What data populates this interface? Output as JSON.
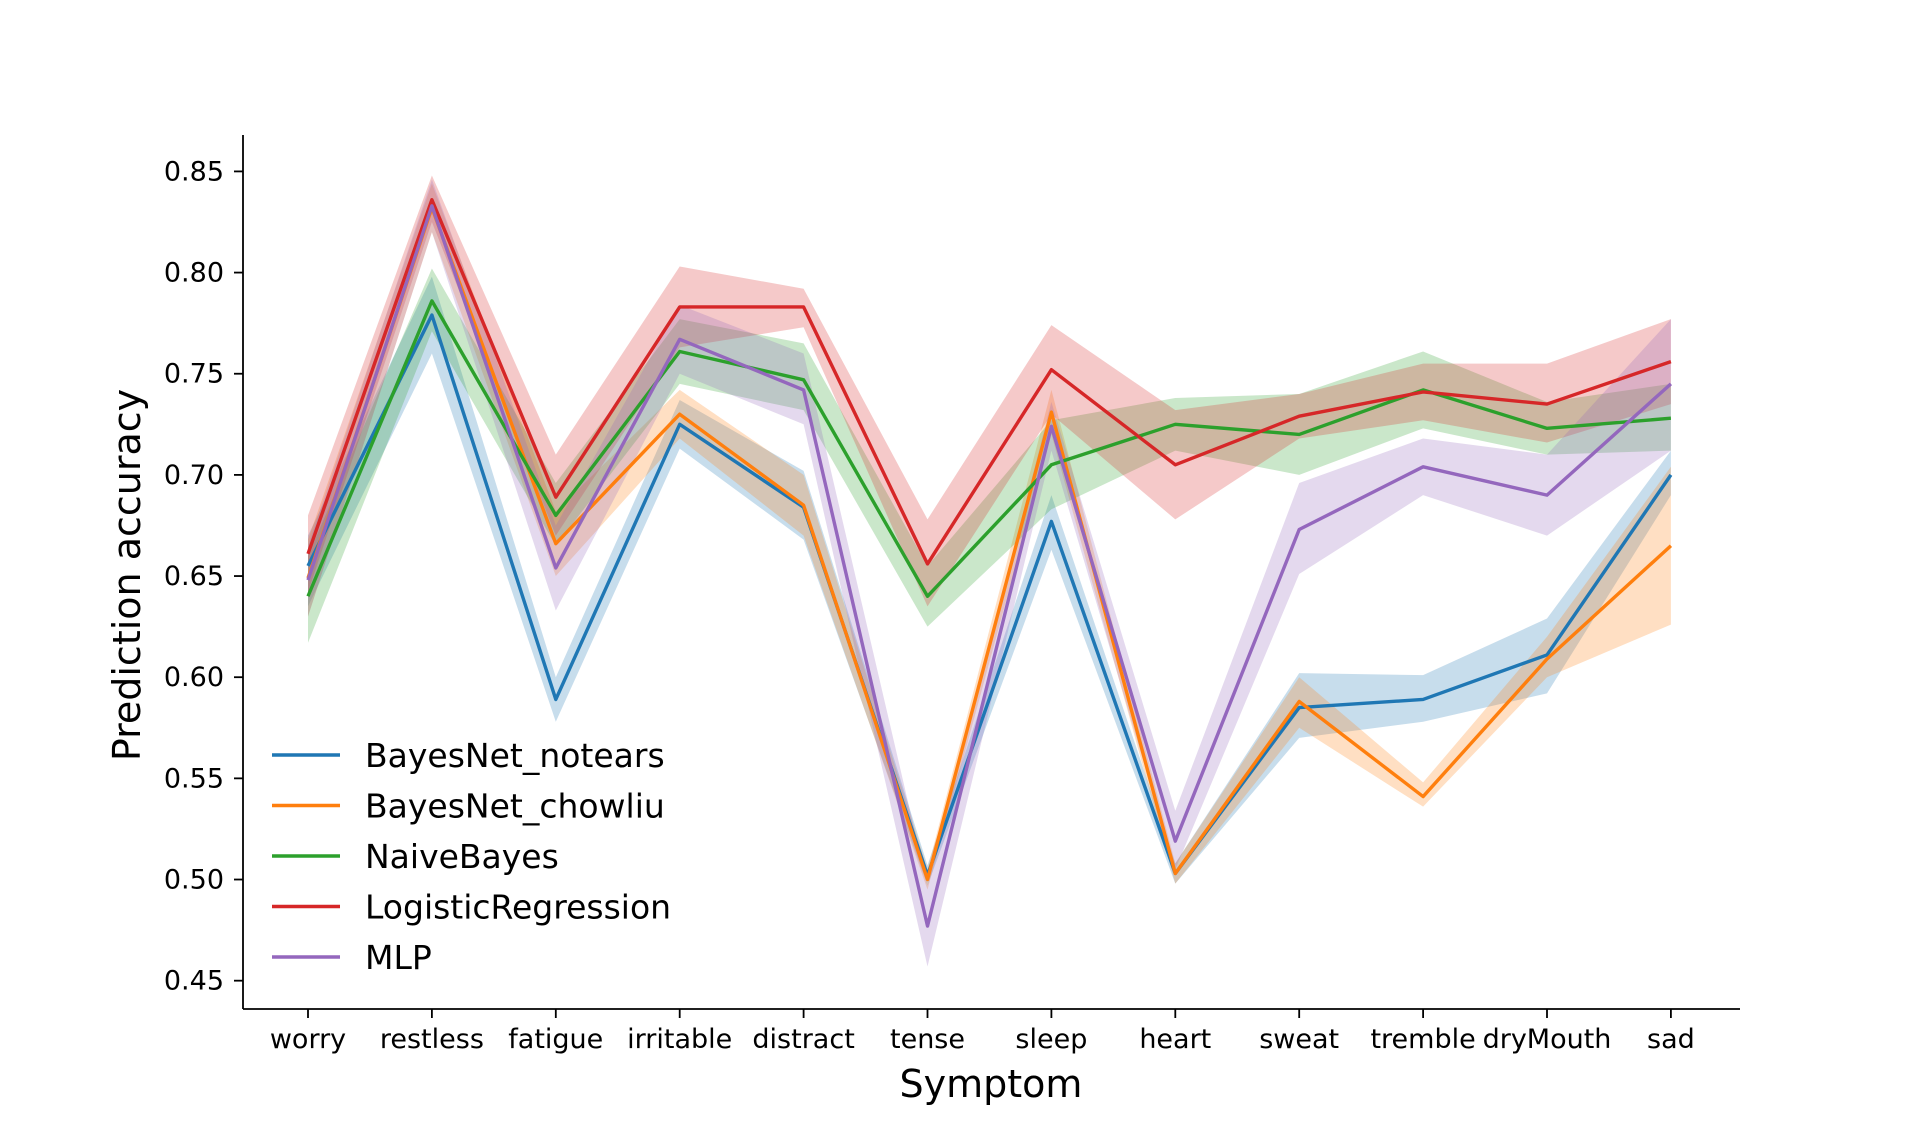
{
  "chart_data": {
    "type": "line",
    "title": "",
    "xlabel": "Symptom",
    "ylabel": "Prediction accuracy",
    "categories": [
      "worry",
      "restless",
      "fatigue",
      "irritable",
      "distract",
      "tense",
      "sleep",
      "heart",
      "sweat",
      "tremble",
      "dryMouth",
      "sad"
    ],
    "ylim": [
      0.436,
      0.868
    ],
    "yticks": [
      "0.45",
      "0.50",
      "0.55",
      "0.60",
      "0.65",
      "0.70",
      "0.75",
      "0.80",
      "0.85"
    ],
    "grid": false,
    "legend_position": "lower-left",
    "series": [
      {
        "name": "BayesNet_notears",
        "color": "#1f77b4",
        "values": [
          0.655,
          0.779,
          0.589,
          0.725,
          0.684,
          0.502,
          0.677,
          0.503,
          0.585,
          0.589,
          0.611,
          0.7
        ],
        "lower": [
          0.635,
          0.76,
          0.578,
          0.713,
          0.668,
          0.497,
          0.663,
          0.498,
          0.57,
          0.578,
          0.592,
          0.69
        ],
        "upper": [
          0.67,
          0.798,
          0.6,
          0.737,
          0.702,
          0.507,
          0.69,
          0.508,
          0.602,
          0.601,
          0.629,
          0.712
        ]
      },
      {
        "name": "BayesNet_chowliu",
        "color": "#ff7f0e",
        "values": [
          0.649,
          0.832,
          0.666,
          0.73,
          0.685,
          0.5,
          0.731,
          0.503,
          0.588,
          0.541,
          0.609,
          0.665
        ],
        "lower": [
          0.63,
          0.82,
          0.65,
          0.718,
          0.67,
          0.495,
          0.72,
          0.498,
          0.575,
          0.536,
          0.6,
          0.626
        ],
        "upper": [
          0.668,
          0.844,
          0.682,
          0.742,
          0.7,
          0.505,
          0.742,
          0.508,
          0.6,
          0.548,
          0.62,
          0.704
        ]
      },
      {
        "name": "NaiveBayes",
        "color": "#2ca02c",
        "values": [
          0.64,
          0.786,
          0.68,
          0.761,
          0.747,
          0.64,
          0.705,
          0.725,
          0.72,
          0.742,
          0.723,
          0.728
        ],
        "lower": [
          0.617,
          0.771,
          0.665,
          0.745,
          0.732,
          0.625,
          0.683,
          0.712,
          0.7,
          0.723,
          0.71,
          0.712
        ],
        "upper": [
          0.66,
          0.802,
          0.696,
          0.777,
          0.765,
          0.655,
          0.727,
          0.738,
          0.74,
          0.761,
          0.736,
          0.745
        ]
      },
      {
        "name": "LogisticRegression",
        "color": "#d62728",
        "values": [
          0.661,
          0.836,
          0.689,
          0.783,
          0.783,
          0.656,
          0.752,
          0.705,
          0.729,
          0.741,
          0.735,
          0.756
        ],
        "lower": [
          0.642,
          0.825,
          0.67,
          0.763,
          0.773,
          0.635,
          0.73,
          0.678,
          0.718,
          0.727,
          0.716,
          0.735
        ],
        "upper": [
          0.68,
          0.848,
          0.71,
          0.803,
          0.792,
          0.678,
          0.774,
          0.732,
          0.74,
          0.755,
          0.755,
          0.777
        ]
      },
      {
        "name": "MLP",
        "color": "#9467bd",
        "values": [
          0.648,
          0.833,
          0.654,
          0.767,
          0.742,
          0.477,
          0.724,
          0.519,
          0.673,
          0.704,
          0.69,
          0.745
        ],
        "lower": [
          0.63,
          0.82,
          0.633,
          0.75,
          0.725,
          0.457,
          0.712,
          0.505,
          0.651,
          0.69,
          0.67,
          0.712
        ],
        "upper": [
          0.665,
          0.846,
          0.675,
          0.784,
          0.76,
          0.497,
          0.736,
          0.534,
          0.696,
          0.718,
          0.71,
          0.777
        ]
      }
    ]
  }
}
